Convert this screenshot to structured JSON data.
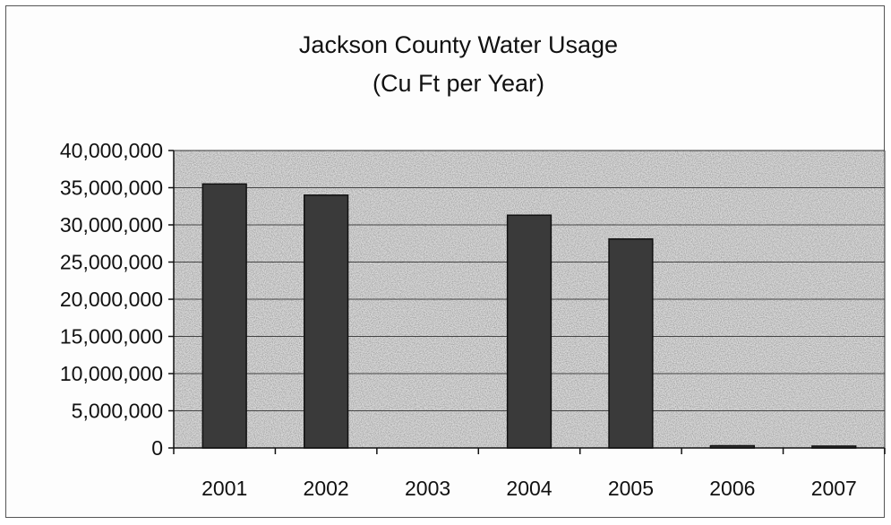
{
  "chart_data": {
    "type": "bar",
    "title": "Jackson County Water Usage",
    "subtitle": "(Cu Ft per Year)",
    "categories": [
      "2001",
      "2002",
      "2003",
      "2004",
      "2005",
      "2006",
      "2007"
    ],
    "values": [
      35500000,
      34000000,
      0,
      31300000,
      28100000,
      300000,
      250000
    ],
    "ylim": [
      0,
      40000000
    ],
    "y_ticks": [
      "0",
      "5,000,000",
      "10,000,000",
      "15,000,000",
      "20,000,000",
      "25,000,000",
      "30,000,000",
      "35,000,000",
      "40,000,000"
    ],
    "y_tick_values": [
      0,
      5000000,
      10000000,
      15000000,
      20000000,
      25000000,
      30000000,
      35000000,
      40000000
    ],
    "grid": true,
    "legend": "none",
    "colors": {
      "bar": "#3a3a3a",
      "plot_bg": "#d9d9d9",
      "grid": "#444444"
    }
  }
}
